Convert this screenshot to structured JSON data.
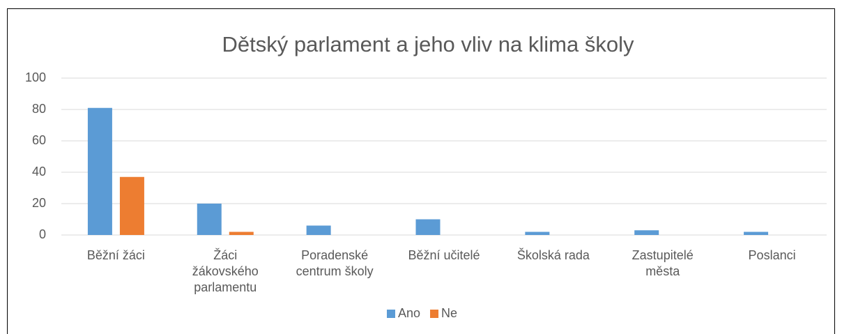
{
  "chart_data": {
    "type": "bar",
    "title": "Dětský parlament a jeho vliv na klima školy",
    "categories": [
      "Běžní žáci",
      "Žáci žákovského parlamentu",
      "Poradenské centrum školy",
      "Běžní učitelé",
      "Školská rada",
      "Zastupitelé města",
      "Poslanci"
    ],
    "series": [
      {
        "name": "Ano",
        "color": "#5b9bd5",
        "values": [
          81,
          20,
          6,
          10,
          2,
          3,
          2
        ]
      },
      {
        "name": "Ne",
        "color": "#ed7d31",
        "values": [
          37,
          2,
          0,
          0,
          0,
          0,
          0
        ]
      }
    ],
    "ylim": [
      0,
      100
    ],
    "yticks": [
      0,
      20,
      40,
      60,
      80,
      100
    ],
    "grid": true,
    "legend": "bottom"
  }
}
